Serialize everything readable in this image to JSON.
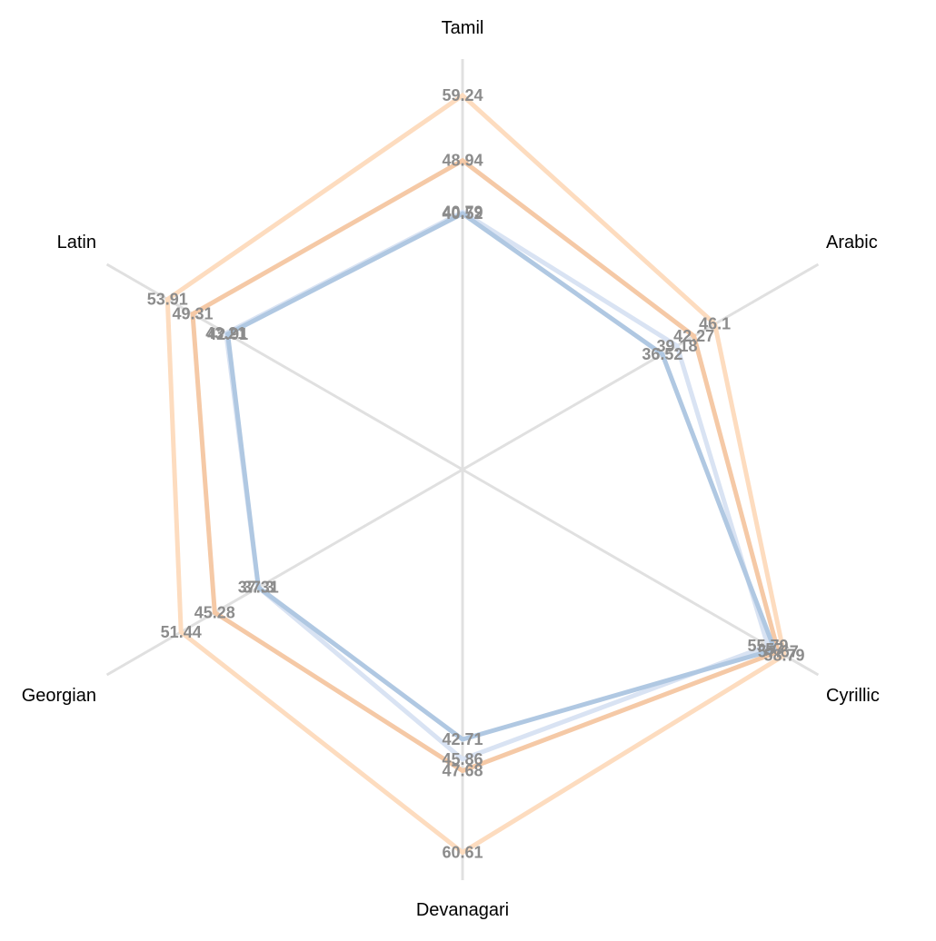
{
  "chart_data": {
    "type": "radar",
    "title": "",
    "axes": [
      "Tamil",
      "Arabic",
      "Cyrillic",
      "Devanagari",
      "Georgian",
      "Latin"
    ],
    "range": [
      0,
      65
    ],
    "legend": "none",
    "grid": true,
    "series": [
      {
        "color": "#fddcbf",
        "values": [
          59.24,
          46.1,
          58.79,
          60.61,
          51.44,
          53.91
        ]
      },
      {
        "color": "#f5c9a6",
        "values": [
          48.94,
          42.27,
          57.67,
          47.68,
          45.28,
          49.31
        ]
      },
      {
        "color": "#d9e3f3",
        "values": [
          40.79,
          39.18,
          55.79,
          45.86,
          37.31,
          43.21
        ]
      },
      {
        "color": "#b0c8e2",
        "values": [
          40.52,
          36.52,
          57.0,
          42.71,
          37.3,
          42.91
        ]
      }
    ],
    "label_color": "#8c8c8c",
    "axis_color": "#e0e0e0"
  }
}
